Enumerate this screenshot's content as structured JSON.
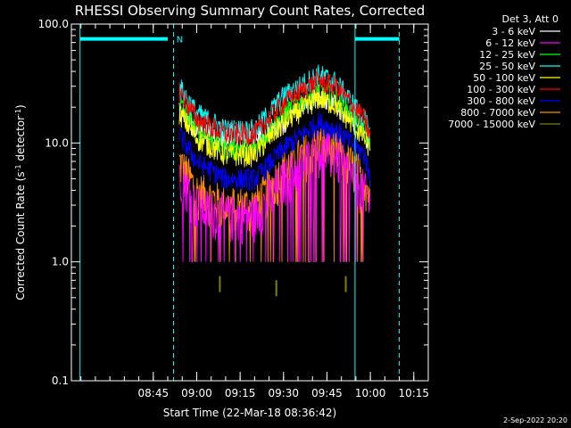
{
  "chart_data": {
    "type": "line",
    "title": "RHESSI Observing Summary Count Rates, Corrected",
    "xlabel": "Start Time (22-Mar-18 08:36:42)",
    "ylabel_main": "Corrected Count Rate (s",
    "ylabel_sup1": "-1",
    "ylabel_mid": " detector",
    "ylabel_sup2": "-1",
    "ylabel_end": ")",
    "y_scale": "log",
    "ylim": [
      0.1,
      100
    ],
    "y_ticks": [
      "100.0",
      "10.0",
      "1.0",
      "0.1"
    ],
    "xlim_minutes": [
      -43.3,
      20.0
    ],
    "x_ticks": [
      {
        "label": "08:45",
        "t": -15
      },
      {
        "label": "09:00",
        "t": 0
      },
      {
        "label": "09:15",
        "t": 15
      },
      {
        "label": "09:30",
        "t": 30
      },
      {
        "label": "09:45",
        "t": 45
      },
      {
        "label": "10:00",
        "t": 60
      },
      {
        "label": "10:15",
        "t": 75
      }
    ],
    "legend_header": "Det 3, Att 0",
    "legend_placement": "outside-right",
    "series": [
      {
        "name": "3 - 6 keV",
        "color": "#ffffff",
        "points": [
          [
            -6,
            20
          ],
          [
            0,
            13
          ],
          [
            10,
            11
          ],
          [
            20,
            11
          ],
          [
            30,
            15
          ],
          [
            42,
            26
          ],
          [
            48,
            22
          ],
          [
            58,
            12
          ],
          [
            60,
            10
          ]
        ]
      },
      {
        "name": "6 - 12 keV",
        "color": "#ff00ff",
        "points": [
          [
            -6,
            6
          ],
          [
            0,
            3
          ],
          [
            10,
            2.5
          ],
          [
            20,
            2.5
          ],
          [
            30,
            5
          ],
          [
            42,
            9
          ],
          [
            48,
            8
          ],
          [
            58,
            4
          ],
          [
            60,
            3
          ]
        ]
      },
      {
        "name": "12 - 25 keV",
        "color": "#00ff00",
        "points": [
          [
            -6,
            22
          ],
          [
            0,
            13
          ],
          [
            10,
            9
          ],
          [
            20,
            9
          ],
          [
            30,
            18
          ],
          [
            42,
            28
          ],
          [
            48,
            25
          ],
          [
            58,
            13
          ],
          [
            60,
            10
          ]
        ]
      },
      {
        "name": "25 - 50 keV",
        "color": "#00ffff",
        "points": [
          [
            -6,
            30
          ],
          [
            0,
            18
          ],
          [
            10,
            13
          ],
          [
            20,
            13
          ],
          [
            30,
            25
          ],
          [
            42,
            38
          ],
          [
            48,
            33
          ],
          [
            58,
            16
          ],
          [
            60,
            12
          ]
        ]
      },
      {
        "name": "50 - 100 keV",
        "color": "#ffff00",
        "points": [
          [
            -6,
            18
          ],
          [
            0,
            11
          ],
          [
            10,
            8
          ],
          [
            20,
            8
          ],
          [
            30,
            15
          ],
          [
            42,
            24
          ],
          [
            48,
            21
          ],
          [
            58,
            11
          ],
          [
            60,
            9
          ]
        ]
      },
      {
        "name": "100 - 300 keV",
        "color": "#ff0000",
        "points": [
          [
            -6,
            28
          ],
          [
            0,
            16
          ],
          [
            10,
            12
          ],
          [
            20,
            12
          ],
          [
            30,
            22
          ],
          [
            42,
            34
          ],
          [
            48,
            30
          ],
          [
            58,
            16
          ],
          [
            60,
            11
          ]
        ]
      },
      {
        "name": "300 - 800 keV",
        "color": "#0000ff",
        "points": [
          [
            -6,
            12
          ],
          [
            0,
            7
          ],
          [
            10,
            5
          ],
          [
            20,
            5
          ],
          [
            30,
            9
          ],
          [
            42,
            15
          ],
          [
            48,
            13
          ],
          [
            58,
            8
          ],
          [
            60,
            5
          ]
        ]
      },
      {
        "name": "800 - 7000 keV",
        "color": "#ff8c00",
        "points": [
          [
            -6,
            7
          ],
          [
            0,
            4
          ],
          [
            10,
            3
          ],
          [
            20,
            3
          ],
          [
            30,
            6
          ],
          [
            42,
            10
          ],
          [
            48,
            9
          ],
          [
            58,
            5
          ],
          [
            60,
            3.5
          ]
        ]
      },
      {
        "name": "7000 - 15000 keV",
        "color": "#808000",
        "points": [
          [
            8,
            0.65
          ],
          [
            27.5,
            0.6
          ],
          [
            51.5,
            0.65
          ]
        ]
      }
    ],
    "annotations": {
      "flag_label": "N",
      "vertical_lines_minutes": [
        {
          "t": -40.3,
          "style": "solid"
        },
        {
          "t": -8.0,
          "style": "dashed"
        },
        {
          "t": 54.7,
          "style": "solid"
        },
        {
          "t": 70.0,
          "style": "dashed"
        }
      ],
      "night_bars_minutes": [
        [
          -40.3,
          -10.0
        ],
        [
          54.7,
          70.0
        ]
      ],
      "night_bar_level": 75
    },
    "grid": false,
    "line_color": "#00ffff"
  },
  "footer": {
    "date_stamp": "2-Sep-2022 20:20"
  }
}
